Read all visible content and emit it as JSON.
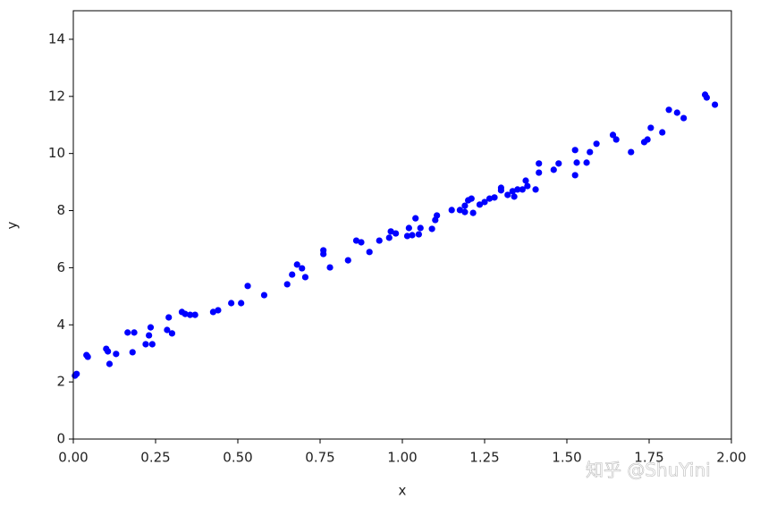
{
  "chart_data": {
    "type": "scatter",
    "xlabel": "x",
    "ylabel": "y",
    "color": "#0000ff",
    "watermark": "知乎 @ShuYini",
    "xlim": [
      0,
      2
    ],
    "ylim": [
      0,
      15
    ],
    "xticks": [
      {
        "value": 0,
        "label": "0.00"
      },
      {
        "value": 0.25,
        "label": "0.25"
      },
      {
        "value": 0.5,
        "label": "0.50"
      },
      {
        "value": 0.75,
        "label": "0.75"
      },
      {
        "value": 1,
        "label": "1.00"
      },
      {
        "value": 1.25,
        "label": "1.25"
      },
      {
        "value": 1.5,
        "label": "1.50"
      },
      {
        "value": 1.75,
        "label": "1.75"
      },
      {
        "value": 2,
        "label": "2.00"
      }
    ],
    "yticks": [
      0,
      2,
      4,
      6,
      8,
      10,
      12,
      14
    ],
    "x": [
      0.005,
      0.01,
      0.04,
      0.044,
      0.1,
      0.105,
      0.11,
      0.13,
      0.165,
      0.185,
      0.18,
      0.22,
      0.23,
      0.235,
      0.24,
      0.29,
      0.285,
      0.3,
      0.33,
      0.34,
      0.355,
      0.37,
      0.425,
      0.44,
      0.48,
      0.51,
      0.53,
      0.58,
      0.65,
      0.665,
      0.68,
      0.695,
      0.705,
      0.76,
      0.76,
      0.78,
      0.835,
      0.86,
      0.875,
      0.9,
      0.93,
      0.96,
      0.965,
      0.98,
      1.015,
      1.02,
      1.03,
      1.04,
      1.05,
      1.055,
      1.09,
      1.1,
      1.105,
      1.15,
      1.175,
      1.19,
      1.19,
      1.2,
      1.21,
      1.215,
      1.235,
      1.25,
      1.265,
      1.28,
      1.3,
      1.3,
      1.32,
      1.335,
      1.34,
      1.35,
      1.365,
      1.375,
      1.38,
      1.405,
      1.415,
      1.415,
      1.46,
      1.475,
      1.525,
      1.525,
      1.53,
      1.56,
      1.57,
      1.59,
      1.64,
      1.65,
      1.695,
      1.735,
      1.745,
      1.755,
      1.79,
      1.81,
      1.835,
      1.855,
      1.92,
      1.925,
      1.95
    ],
    "values": [
      2.22,
      2.28,
      2.94,
      2.88,
      3.16,
      3.07,
      2.63,
      2.98,
      3.73,
      3.73,
      3.04,
      3.32,
      3.63,
      3.91,
      3.32,
      4.26,
      3.82,
      3.7,
      4.45,
      4.38,
      4.35,
      4.35,
      4.45,
      4.51,
      4.76,
      4.76,
      5.36,
      5.04,
      5.42,
      5.76,
      6.11,
      5.98,
      5.67,
      6.61,
      6.48,
      6.01,
      6.26,
      6.95,
      6.89,
      6.55,
      6.95,
      7.05,
      7.27,
      7.2,
      7.11,
      7.39,
      7.14,
      7.73,
      7.17,
      7.39,
      7.36,
      7.67,
      7.83,
      8.02,
      8.02,
      7.95,
      8.17,
      8.36,
      8.42,
      7.92,
      8.21,
      8.3,
      8.42,
      8.46,
      8.8,
      8.71,
      8.55,
      8.68,
      8.49,
      8.74,
      8.74,
      9.05,
      8.86,
      8.74,
      9.65,
      9.33,
      9.43,
      9.65,
      10.12,
      9.24,
      9.68,
      9.68,
      10.05,
      10.34,
      10.65,
      10.49,
      10.05,
      10.4,
      10.49,
      10.9,
      10.74,
      11.53,
      11.43,
      11.24,
      12.06,
      11.96,
      11.71
    ]
  }
}
